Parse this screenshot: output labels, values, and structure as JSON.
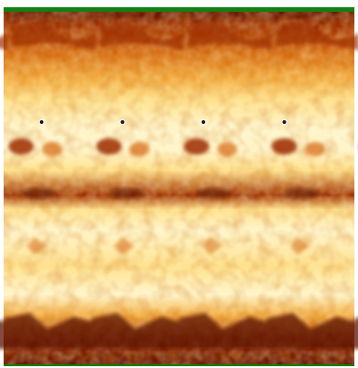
{
  "image": {
    "kind": "autostereogram",
    "palette": {
      "deep": "#5a0f00",
      "dark": "#9c2c00",
      "mid": "#d66a10",
      "warm": "#f2a83a",
      "light": "#ffe08a",
      "pale": "#fff6cf",
      "frame_green": "#128012",
      "dot": "#1b1b1b"
    },
    "repeat_count": 4,
    "focus_dot_count": 4
  }
}
